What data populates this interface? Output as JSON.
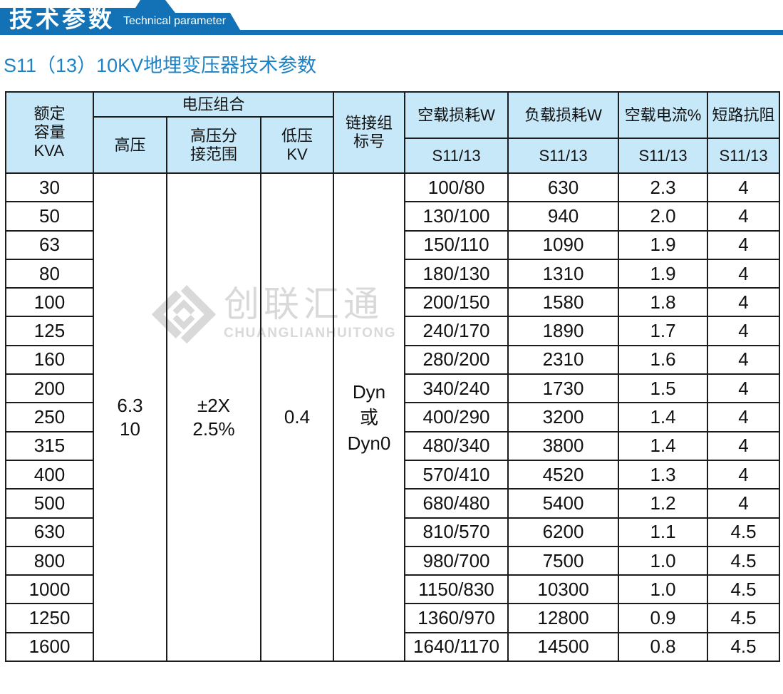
{
  "banner": {
    "title": "技术参数",
    "subtitle": "Technical parameter"
  },
  "page_title": "S11（13）10KV地埋变压器技术参数",
  "watermark": {
    "cn": "创联汇通",
    "en": "CHUANGLIANHUITONG"
  },
  "colors": {
    "banner_blue": "#1272b5",
    "title_blue": "#1b83c6",
    "table_header_bg": "#c7e8f8",
    "border": "#1c1c1c",
    "watermark_gray": "#d9d9d9"
  },
  "table": {
    "header": {
      "capacity": "额定\n容量\nKVA",
      "voltage_combo": "电压组合",
      "hv": "高压",
      "hv_tap": "高压分\n接范围",
      "lv": "低压\nKV",
      "vector_group": "链接组\n标号",
      "no_load_loss": "空载损耗W",
      "load_loss": "负载损耗W",
      "no_load_current": "空载电流%",
      "short_impedance": "短路抗阻",
      "model_no_load": "S11/13",
      "model_load": "S11/13",
      "model_current": "S11/13",
      "model_impedance": "S11/13"
    },
    "merged": {
      "hv": "6.3\n10",
      "hv_tap": "±2X\n2.5%",
      "lv": "0.4",
      "vector": "Dyn\n或\nDyn0"
    },
    "rows": [
      [
        "30",
        "100/80",
        "630",
        "2.3",
        "4"
      ],
      [
        "50",
        "130/100",
        "940",
        "2.0",
        "4"
      ],
      [
        "63",
        "150/110",
        "1090",
        "1.9",
        "4"
      ],
      [
        "80",
        "180/130",
        "1310",
        "1.9",
        "4"
      ],
      [
        "100",
        "200/150",
        "1580",
        "1.8",
        "4"
      ],
      [
        "125",
        "240/170",
        "1890",
        "1.7",
        "4"
      ],
      [
        "160",
        "280/200",
        "2310",
        "1.6",
        "4"
      ],
      [
        "200",
        "340/240",
        "1730",
        "1.5",
        "4"
      ],
      [
        "250",
        "400/290",
        "3200",
        "1.4",
        "4"
      ],
      [
        "315",
        "480/340",
        "3800",
        "1.4",
        "4"
      ],
      [
        "400",
        "570/410",
        "4520",
        "1.3",
        "4"
      ],
      [
        "500",
        "680/480",
        "5400",
        "1.2",
        "4"
      ],
      [
        "630",
        "810/570",
        "6200",
        "1.1",
        "4.5"
      ],
      [
        "800",
        "980/700",
        "7500",
        "1.0",
        "4.5"
      ],
      [
        "1000",
        "1150/830",
        "10300",
        "1.0",
        "4.5"
      ],
      [
        "1250",
        "1360/970",
        "12800",
        "0.9",
        "4.5"
      ],
      [
        "1600",
        "1640/1170",
        "14500",
        "0.8",
        "4.5"
      ]
    ]
  }
}
